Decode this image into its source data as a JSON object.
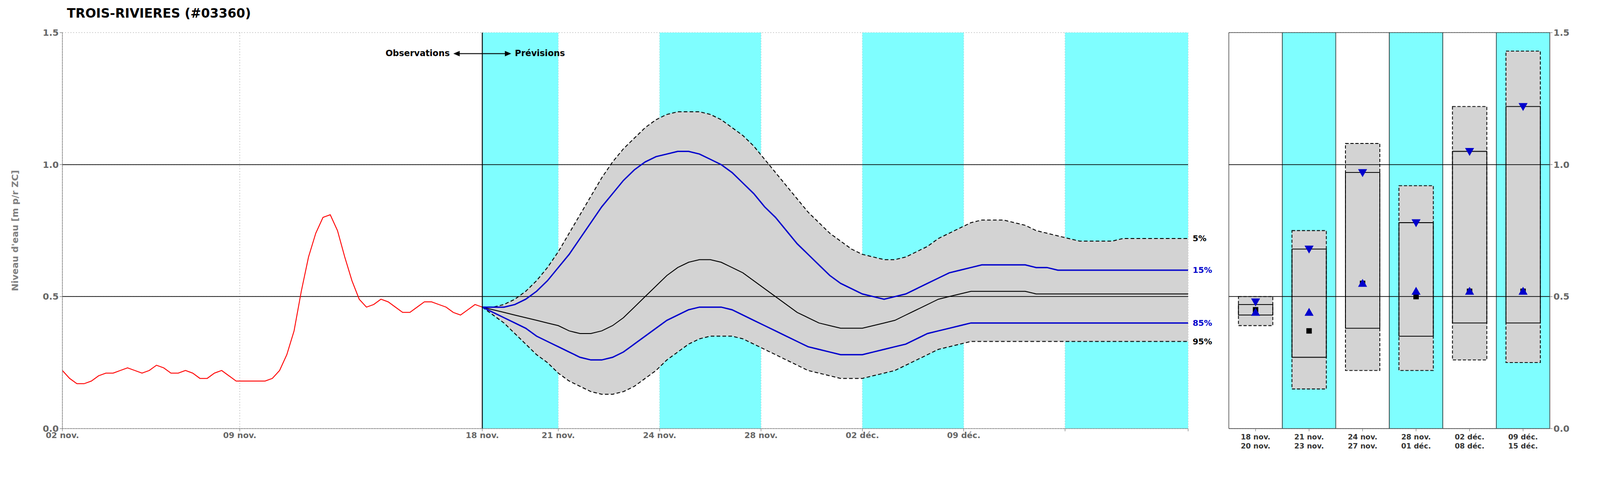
{
  "chart_data": [
    {
      "type": "line",
      "title": "TROIS-RIVIERES (#03360)",
      "y_label": "Niveau d'eau [m p/r ZC]",
      "xlim": [
        0,
        311
      ],
      "xticks": [
        {
          "value": 0,
          "label": "02 nov."
        },
        {
          "value": 49,
          "label": "09 nov."
        },
        {
          "value": 116,
          "label": "18 nov."
        },
        {
          "value": 137,
          "label": "21 nov."
        },
        {
          "value": 165,
          "label": "24 nov."
        },
        {
          "value": 193,
          "label": "28 nov."
        },
        {
          "value": 221,
          "label": "02 déc."
        },
        {
          "value": 249,
          "label": "09 déc."
        },
        {
          "value": 277,
          "label": null
        },
        {
          "value": 311,
          "label": null
        }
      ],
      "ylim": [
        0.0,
        1.5
      ],
      "yticks": [
        {
          "value": 0.0,
          "label": "0.0"
        },
        0.5,
        {
          "value": 1.0,
          "label": "1.0"
        },
        1.5
      ],
      "grid": true,
      "bands": {
        "color": "#7ffeff",
        "ranges": [
          [
            116,
            137
          ],
          [
            165,
            193
          ],
          [
            221,
            249
          ],
          [
            277,
            311
          ]
        ]
      },
      "fill": {
        "color": "#d3d3d3",
        "series": [
          "95%",
          "5%"
        ]
      },
      "hlines": [
        0.5,
        1.0
      ],
      "vlines": [
        116
      ],
      "annotations": [
        "Observations",
        "Prévisions"
      ],
      "series": [
        {
          "name": "5%",
          "color": "#000000",
          "line_style": "dashed",
          "x": [
            116,
            119,
            122,
            125,
            128,
            131,
            134,
            137,
            140,
            143,
            146,
            149,
            152,
            155,
            158,
            161,
            164,
            167,
            170,
            173,
            176,
            179,
            182,
            185,
            188,
            191,
            194,
            197,
            200,
            203,
            206,
            209,
            212,
            215,
            218,
            221,
            224,
            227,
            230,
            233,
            236,
            239,
            242,
            245,
            248,
            251,
            254,
            257,
            260,
            263,
            266,
            269,
            272,
            275,
            278,
            281,
            284,
            287,
            290,
            293,
            296,
            299,
            302,
            305,
            308,
            311
          ],
          "values": [
            0.46,
            0.46,
            0.47,
            0.49,
            0.52,
            0.56,
            0.61,
            0.67,
            0.74,
            0.81,
            0.88,
            0.95,
            1.01,
            1.06,
            1.1,
            1.14,
            1.17,
            1.19,
            1.2,
            1.2,
            1.2,
            1.19,
            1.17,
            1.14,
            1.11,
            1.07,
            1.02,
            0.97,
            0.92,
            0.87,
            0.82,
            0.78,
            0.74,
            0.71,
            0.68,
            0.66,
            0.65,
            0.64,
            0.64,
            0.65,
            0.67,
            0.69,
            0.72,
            0.74,
            0.76,
            0.78,
            0.79,
            0.79,
            0.79,
            0.78,
            0.77,
            0.75,
            0.74,
            0.73,
            0.72,
            0.71,
            0.71,
            0.71,
            0.71,
            0.72,
            0.72,
            0.72,
            0.72,
            0.72,
            0.72,
            0.72
          ]
        },
        {
          "name": "95%",
          "color": "#000000",
          "line_style": "dashed",
          "x": [
            116,
            119,
            122,
            125,
            128,
            131,
            134,
            137,
            140,
            143,
            146,
            149,
            152,
            155,
            158,
            161,
            164,
            167,
            170,
            173,
            176,
            179,
            182,
            185,
            188,
            191,
            194,
            197,
            200,
            203,
            206,
            209,
            212,
            215,
            218,
            221,
            224,
            227,
            230,
            233,
            236,
            239,
            242,
            245,
            248,
            251,
            254,
            257,
            260,
            263,
            266,
            269,
            272,
            275,
            278,
            281,
            284,
            287,
            290,
            293,
            296,
            299,
            302,
            305,
            308,
            311
          ],
          "values": [
            0.46,
            0.43,
            0.4,
            0.36,
            0.32,
            0.28,
            0.25,
            0.21,
            0.18,
            0.16,
            0.14,
            0.13,
            0.13,
            0.14,
            0.16,
            0.19,
            0.22,
            0.26,
            0.29,
            0.32,
            0.34,
            0.35,
            0.35,
            0.35,
            0.34,
            0.32,
            0.3,
            0.28,
            0.26,
            0.24,
            0.22,
            0.21,
            0.2,
            0.19,
            0.19,
            0.19,
            0.2,
            0.21,
            0.22,
            0.24,
            0.26,
            0.28,
            0.3,
            0.31,
            0.32,
            0.33,
            0.33,
            0.33,
            0.33,
            0.33,
            0.33,
            0.33,
            0.33,
            0.33,
            0.33,
            0.33,
            0.33,
            0.33,
            0.33,
            0.33,
            0.33,
            0.33,
            0.33,
            0.33,
            0.33,
            0.33
          ]
        },
        {
          "color": "#000000",
          "line_style": "solid",
          "x": [
            116,
            119,
            122,
            125,
            128,
            131,
            134,
            137,
            140,
            143,
            146,
            149,
            152,
            155,
            158,
            161,
            164,
            167,
            170,
            173,
            176,
            179,
            182,
            185,
            188,
            191,
            194,
            197,
            200,
            203,
            206,
            209,
            212,
            215,
            218,
            221,
            224,
            227,
            230,
            233,
            236,
            239,
            242,
            245,
            248,
            251,
            254,
            257,
            260,
            263,
            266,
            269,
            272,
            275,
            278,
            281,
            284,
            287,
            290,
            293,
            296,
            299,
            302,
            305,
            308,
            311
          ],
          "values": [
            0.46,
            0.45,
            0.44,
            0.43,
            0.42,
            0.41,
            0.4,
            0.39,
            0.37,
            0.36,
            0.36,
            0.37,
            0.39,
            0.42,
            0.46,
            0.5,
            0.54,
            0.58,
            0.61,
            0.63,
            0.64,
            0.64,
            0.63,
            0.61,
            0.59,
            0.56,
            0.53,
            0.5,
            0.47,
            0.44,
            0.42,
            0.4,
            0.39,
            0.38,
            0.38,
            0.38,
            0.39,
            0.4,
            0.41,
            0.43,
            0.45,
            0.47,
            0.49,
            0.5,
            0.51,
            0.52,
            0.52,
            0.52,
            0.52,
            0.52,
            0.52,
            0.51,
            0.51,
            0.51,
            0.51,
            0.51,
            0.51,
            0.51,
            0.51,
            0.51,
            0.51,
            0.51,
            0.51,
            0.51,
            0.51,
            0.51
          ]
        },
        {
          "name": "15%",
          "color": "#0000cc",
          "line_style": "solid",
          "x": [
            116,
            119,
            122,
            125,
            128,
            131,
            134,
            137,
            140,
            143,
            146,
            149,
            152,
            155,
            158,
            161,
            164,
            167,
            170,
            173,
            176,
            179,
            182,
            185,
            188,
            191,
            194,
            197,
            200,
            203,
            206,
            209,
            212,
            215,
            218,
            221,
            224,
            227,
            230,
            233,
            236,
            239,
            242,
            245,
            248,
            251,
            254,
            257,
            260,
            263,
            266,
            269,
            272,
            275,
            278,
            281,
            284,
            287,
            290,
            293,
            296,
            299,
            302,
            305,
            308,
            311
          ],
          "values": [
            0.46,
            0.46,
            0.46,
            0.47,
            0.49,
            0.52,
            0.56,
            0.61,
            0.66,
            0.72,
            0.78,
            0.84,
            0.89,
            0.94,
            0.98,
            1.01,
            1.03,
            1.04,
            1.05,
            1.05,
            1.04,
            1.02,
            1.0,
            0.97,
            0.93,
            0.89,
            0.84,
            0.8,
            0.75,
            0.7,
            0.66,
            0.62,
            0.58,
            0.55,
            0.53,
            0.51,
            0.5,
            0.49,
            0.5,
            0.51,
            0.53,
            0.55,
            0.57,
            0.59,
            0.6,
            0.61,
            0.62,
            0.62,
            0.62,
            0.62,
            0.62,
            0.61,
            0.61,
            0.6,
            0.6,
            0.6,
            0.6,
            0.6,
            0.6,
            0.6,
            0.6,
            0.6,
            0.6,
            0.6,
            0.6,
            0.6
          ]
        },
        {
          "name": "85%",
          "color": "#0000cc",
          "line_style": "solid",
          "x": [
            116,
            119,
            122,
            125,
            128,
            131,
            134,
            137,
            140,
            143,
            146,
            149,
            152,
            155,
            158,
            161,
            164,
            167,
            170,
            173,
            176,
            179,
            182,
            185,
            188,
            191,
            194,
            197,
            200,
            203,
            206,
            209,
            212,
            215,
            218,
            221,
            224,
            227,
            230,
            233,
            236,
            239,
            242,
            245,
            248,
            251,
            254,
            257,
            260,
            263,
            266,
            269,
            272,
            275,
            278,
            281,
            284,
            287,
            290,
            293,
            296,
            299,
            302,
            305,
            308,
            311
          ],
          "values": [
            0.46,
            0.44,
            0.42,
            0.4,
            0.38,
            0.35,
            0.33,
            0.31,
            0.29,
            0.27,
            0.26,
            0.26,
            0.27,
            0.29,
            0.32,
            0.35,
            0.38,
            0.41,
            0.43,
            0.45,
            0.46,
            0.46,
            0.46,
            0.45,
            0.43,
            0.41,
            0.39,
            0.37,
            0.35,
            0.33,
            0.31,
            0.3,
            0.29,
            0.28,
            0.28,
            0.28,
            0.29,
            0.3,
            0.31,
            0.32,
            0.34,
            0.36,
            0.37,
            0.38,
            0.39,
            0.4,
            0.4,
            0.4,
            0.4,
            0.4,
            0.4,
            0.4,
            0.4,
            0.4,
            0.4,
            0.4,
            0.4,
            0.4,
            0.4,
            0.4,
            0.4,
            0.4,
            0.4,
            0.4,
            0.4,
            0.4
          ]
        },
        {
          "color": "#ff0000",
          "line_style": "solid",
          "x": [
            0,
            2,
            4,
            6,
            8,
            10,
            12,
            14,
            16,
            18,
            20,
            22,
            24,
            26,
            28,
            30,
            32,
            34,
            36,
            38,
            40,
            42,
            44,
            46,
            48,
            50,
            52,
            54,
            56,
            58,
            60,
            62,
            64,
            66,
            68,
            70,
            72,
            74,
            76,
            78,
            80,
            82,
            84,
            86,
            88,
            90,
            92,
            94,
            96,
            98,
            100,
            102,
            104,
            106,
            108,
            110,
            112,
            114,
            116
          ],
          "values": [
            0.22,
            0.19,
            0.17,
            0.17,
            0.18,
            0.2,
            0.21,
            0.21,
            0.22,
            0.23,
            0.22,
            0.21,
            0.22,
            0.24,
            0.23,
            0.21,
            0.21,
            0.22,
            0.21,
            0.19,
            0.19,
            0.21,
            0.22,
            0.2,
            0.18,
            0.18,
            0.18,
            0.18,
            0.18,
            0.19,
            0.22,
            0.28,
            0.37,
            0.52,
            0.65,
            0.74,
            0.8,
            0.81,
            0.75,
            0.65,
            0.56,
            0.49,
            0.46,
            0.47,
            0.49,
            0.48,
            0.46,
            0.44,
            0.44,
            0.46,
            0.48,
            0.48,
            0.47,
            0.46,
            0.44,
            0.43,
            0.45,
            0.47,
            0.46
          ]
        }
      ]
    },
    {
      "type": "box",
      "categories": [
        "18 nov.\n20 nov.",
        "21 nov.\n23 nov.",
        "24 nov.\n27 nov.",
        "28 nov.\n01 déc.",
        "02 déc.\n08 déc.",
        "09 déc.\n15 déc."
      ],
      "colors": [
        "#ffffff",
        "#7ffeff",
        "#ffffff",
        "#7ffeff",
        "#ffffff",
        "#7ffeff"
      ],
      "ylim": [
        0.0,
        1.5
      ],
      "yticks": [
        {
          "value": 0.0,
          "label": "0.0"
        },
        0.5,
        {
          "value": 1.0,
          "label": "1.0"
        },
        1.5
      ],
      "grid": true,
      "hlines": [
        0.5,
        1.0
      ],
      "fill": {
        "color": "#d3d3d3"
      },
      "p5": [
        0.5,
        0.75,
        1.08,
        0.92,
        1.22,
        1.43
      ],
      "p15": [
        0.47,
        0.68,
        0.97,
        0.78,
        1.05,
        1.22
      ],
      "p85": [
        0.43,
        0.27,
        0.38,
        0.35,
        0.4,
        0.4
      ],
      "p95": [
        0.39,
        0.15,
        0.22,
        0.22,
        0.26,
        0.25
      ],
      "markers": [
        {
          "marker": "square",
          "color": "#000000",
          "values": [
            0.45,
            0.37,
            0.55,
            0.5,
            0.52,
            0.52
          ]
        },
        {
          "marker": "triangle-up",
          "color": "#0000cc",
          "values": [
            0.44,
            0.44,
            0.55,
            0.52,
            0.52,
            0.52
          ]
        },
        {
          "marker": "triangle-down",
          "color": "#0000cc",
          "values": [
            0.48,
            0.68,
            0.97,
            0.78,
            1.05,
            1.22
          ]
        }
      ]
    }
  ]
}
